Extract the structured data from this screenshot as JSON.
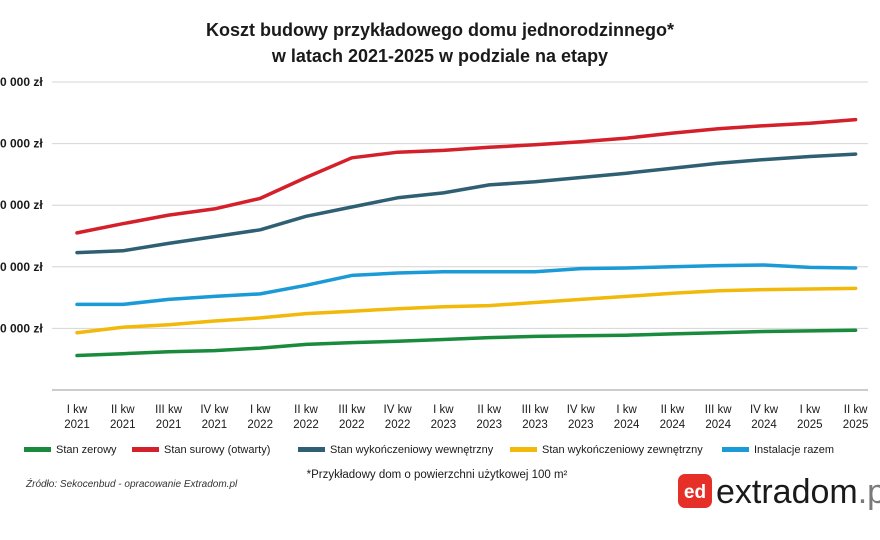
{
  "chart_data": {
    "type": "line",
    "title": [
      "Koszt budowy przykładowego domu jednorodzinnego*",
      "w latach 2021-2025 w podziale na etapy"
    ],
    "categories": [
      [
        "I kw",
        "2021"
      ],
      [
        "II kw",
        "2021"
      ],
      [
        "III kw",
        "2021"
      ],
      [
        "IV kw",
        "2021"
      ],
      [
        "I kw",
        "2022"
      ],
      [
        "II kw",
        "2022"
      ],
      [
        "III kw",
        "2022"
      ],
      [
        "IV kw",
        "2022"
      ],
      [
        "I kw",
        "2023"
      ],
      [
        "II kw",
        "2023"
      ],
      [
        "III kw",
        "2023"
      ],
      [
        "IV kw",
        "2023"
      ],
      [
        "I kw",
        "2024"
      ],
      [
        "II kw",
        "2024"
      ],
      [
        "III kw",
        "2024"
      ],
      [
        "IV kw",
        "2024"
      ],
      [
        "I kw",
        "2025"
      ],
      [
        "II kw",
        "2025"
      ]
    ],
    "y_ticks": [
      "0 000 zł",
      "0 000 zł",
      "0 000 zł",
      "0 000 zł",
      "0 000 zł"
    ],
    "ylim": [
      0,
      5
    ],
    "grid": true,
    "legend_position": "bottom",
    "series": [
      {
        "name": "Stan zerowy",
        "color": "#1a8a3c",
        "values": [
          0.56,
          0.59,
          0.62,
          0.64,
          0.68,
          0.74,
          0.77,
          0.79,
          0.82,
          0.85,
          0.87,
          0.88,
          0.89,
          0.91,
          0.93,
          0.95,
          0.96,
          0.97
        ]
      },
      {
        "name": "Stan surowy (otwarty)",
        "color": "#d4202a",
        "values": [
          2.55,
          2.7,
          2.84,
          2.94,
          3.11,
          3.45,
          3.77,
          3.86,
          3.89,
          3.94,
          3.98,
          4.03,
          4.09,
          4.17,
          4.24,
          4.29,
          4.33,
          4.39
        ]
      },
      {
        "name": "Stan wykończeniowy wewnętrzny",
        "color": "#2f5f73",
        "values": [
          2.23,
          2.26,
          2.38,
          2.49,
          2.6,
          2.82,
          2.97,
          3.12,
          3.2,
          3.33,
          3.38,
          3.45,
          3.52,
          3.6,
          3.68,
          3.74,
          3.79,
          3.83
        ]
      },
      {
        "name": "Stan wykończeniowy zewnętrzny",
        "color": "#f2b80a",
        "values": [
          0.93,
          1.02,
          1.06,
          1.12,
          1.17,
          1.24,
          1.28,
          1.32,
          1.35,
          1.37,
          1.42,
          1.47,
          1.52,
          1.57,
          1.61,
          1.63,
          1.64,
          1.65
        ]
      },
      {
        "name": "Instalacje razem",
        "color": "#1a9ad6",
        "values": [
          1.39,
          1.39,
          1.47,
          1.52,
          1.56,
          1.7,
          1.86,
          1.9,
          1.92,
          1.92,
          1.92,
          1.97,
          1.98,
          2.0,
          2.02,
          2.03,
          1.99,
          1.98
        ]
      }
    ]
  },
  "footnote": "*Przykładowy dom o powierzchni użytkowej 100 m²",
  "source": "Źródło: Sekocenbud - opracowanie Extradom.pl",
  "brand": {
    "logo_letters": "ed",
    "name": "extradom",
    "suffix": ".pl",
    "color": "#e63027"
  }
}
